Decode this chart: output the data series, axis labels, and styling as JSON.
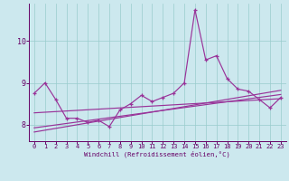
{
  "xlabel": "Windchill (Refroidissement éolien,°C)",
  "x": [
    0,
    1,
    2,
    3,
    4,
    5,
    6,
    7,
    8,
    9,
    10,
    11,
    12,
    13,
    14,
    15,
    16,
    17,
    18,
    19,
    20,
    21,
    22,
    23
  ],
  "line1": [
    8.75,
    9.0,
    8.6,
    8.15,
    8.15,
    8.05,
    8.1,
    7.95,
    8.35,
    8.5,
    8.7,
    8.55,
    8.65,
    8.75,
    9.0,
    10.75,
    9.55,
    9.65,
    9.1,
    8.85,
    8.8,
    8.6,
    8.4,
    8.65
  ],
  "trend1_x": [
    0,
    23
  ],
  "trend1_y": [
    7.92,
    8.72
  ],
  "trend2_x": [
    0,
    23
  ],
  "trend2_y": [
    8.28,
    8.62
  ],
  "trend3_x": [
    0,
    23
  ],
  "trend3_y": [
    7.82,
    8.82
  ],
  "ylim": [
    7.6,
    10.9
  ],
  "yticks": [
    8,
    9,
    10
  ],
  "xticks": [
    0,
    1,
    2,
    3,
    4,
    5,
    6,
    7,
    8,
    9,
    10,
    11,
    12,
    13,
    14,
    15,
    16,
    17,
    18,
    19,
    20,
    21,
    22,
    23
  ],
  "bg_color": "#cce8ee",
  "line_color": "#993399",
  "grid_color": "#99cccc",
  "font_color": "#660066",
  "figwidth": 3.2,
  "figheight": 2.0,
  "dpi": 100
}
